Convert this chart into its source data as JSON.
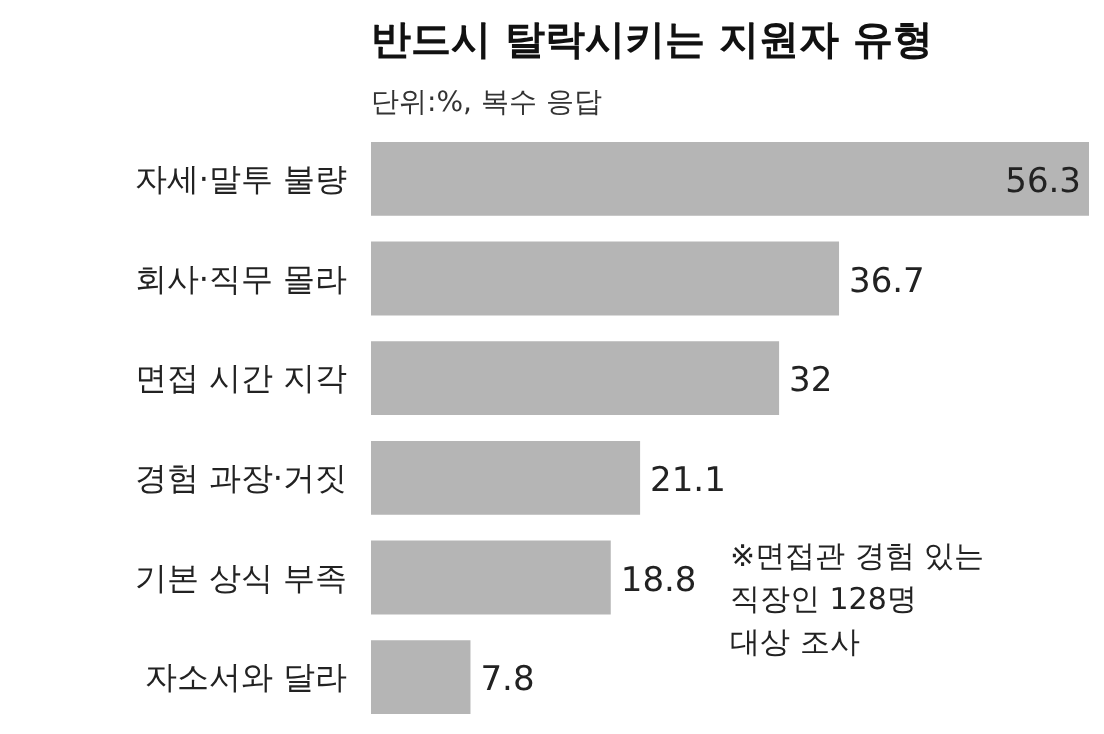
{
  "chart_data": {
    "type": "bar",
    "orientation": "horizontal",
    "title": "반드시 탈락시키는 지원자 유형",
    "subtitle": "단위:%, 복수 응답",
    "categories": [
      "자세·말투 불량",
      "회사·직무 몰라",
      "면접 시간 지각",
      "경험 과장·거짓",
      "기본 상식 부족",
      "자소서와 달라"
    ],
    "values": [
      56.3,
      36.7,
      32,
      21.1,
      18.8,
      7.8
    ],
    "color": "#b5b5b5",
    "data_labels": true,
    "annotations": [
      "※면접관 경험 있는\n직장인 128명\n대상 조사"
    ]
  }
}
